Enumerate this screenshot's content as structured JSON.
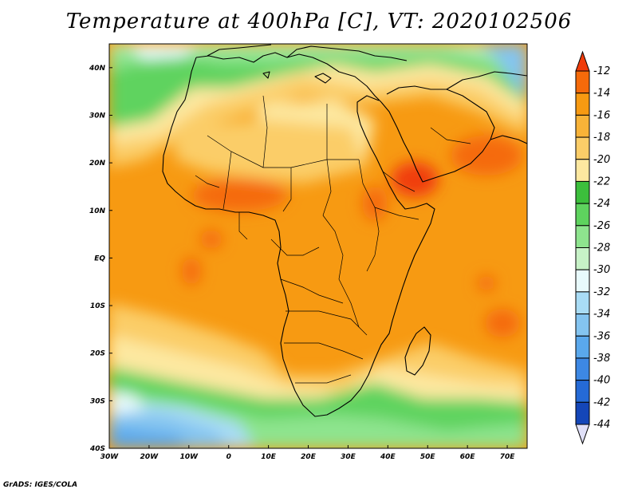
{
  "title": "Temperature at 400hPa [C], VT: 2020102506",
  "credit": "GrADS: IGES/COLA",
  "map": {
    "lon_range": [
      -30,
      75
    ],
    "lat_range": [
      -40,
      45
    ],
    "lon_ticks": [
      {
        "value": -30,
        "label": "30W"
      },
      {
        "value": -20,
        "label": "20W"
      },
      {
        "value": -10,
        "label": "10W"
      },
      {
        "value": 0,
        "label": "0"
      },
      {
        "value": 10,
        "label": "10E"
      },
      {
        "value": 20,
        "label": "20E"
      },
      {
        "value": 30,
        "label": "30E"
      },
      {
        "value": 40,
        "label": "40E"
      },
      {
        "value": 50,
        "label": "50E"
      },
      {
        "value": 60,
        "label": "60E"
      },
      {
        "value": 70,
        "label": "70E"
      }
    ],
    "lat_ticks": [
      {
        "value": 40,
        "label": "40N"
      },
      {
        "value": 30,
        "label": "30N"
      },
      {
        "value": 20,
        "label": "20N"
      },
      {
        "value": 10,
        "label": "10N"
      },
      {
        "value": 0,
        "label": "EQ"
      },
      {
        "value": -10,
        "label": "10S"
      },
      {
        "value": -20,
        "label": "20S"
      },
      {
        "value": -30,
        "label": "30S"
      },
      {
        "value": -40,
        "label": "40S"
      }
    ]
  },
  "colorbar": {
    "labels": [
      "-12",
      "-14",
      "-16",
      "-18",
      "-20",
      "-22",
      "-24",
      "-26",
      "-28",
      "-30",
      "-32",
      "-34",
      "-36",
      "-38",
      "-40",
      "-42",
      "-44"
    ],
    "colors": [
      "#f03c0a",
      "#f56a0a",
      "#f79a12",
      "#f8b338",
      "#fbcd68",
      "#fde8a0",
      "#3cbf3c",
      "#5ed35e",
      "#8ee48e",
      "#c7f2c7",
      "#e8fafc",
      "#a9dcf5",
      "#84c4f0",
      "#5aa8ec",
      "#3d88e4",
      "#256ad6",
      "#1446b8",
      "#0a2890",
      "#e0e0f8"
    ]
  }
}
